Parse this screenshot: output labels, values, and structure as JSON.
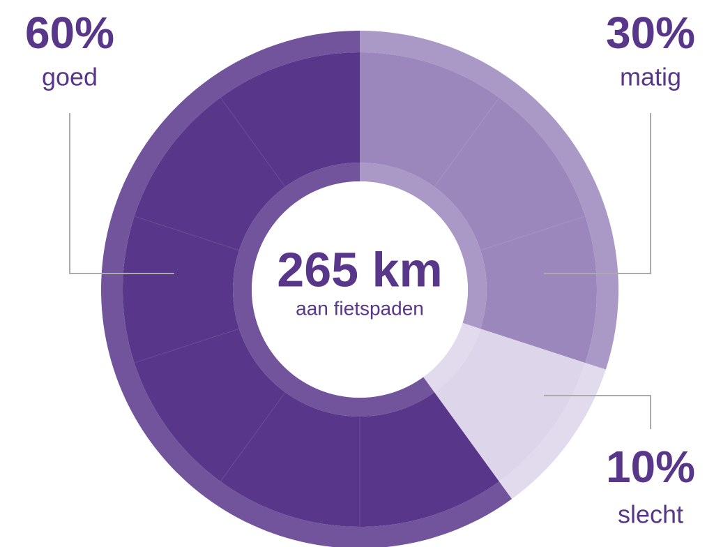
{
  "chart_data": {
    "type": "donut",
    "categories": [
      "goed",
      "matig",
      "slecht"
    ],
    "values": [
      60,
      30,
      10
    ],
    "value_labels": [
      "60%",
      "30%",
      "10%"
    ],
    "colors": [
      "#58368a",
      "#9b87bc",
      "#ddd5ea"
    ],
    "center_label": "265 km",
    "center_sublabel": "aan fietspaden"
  }
}
